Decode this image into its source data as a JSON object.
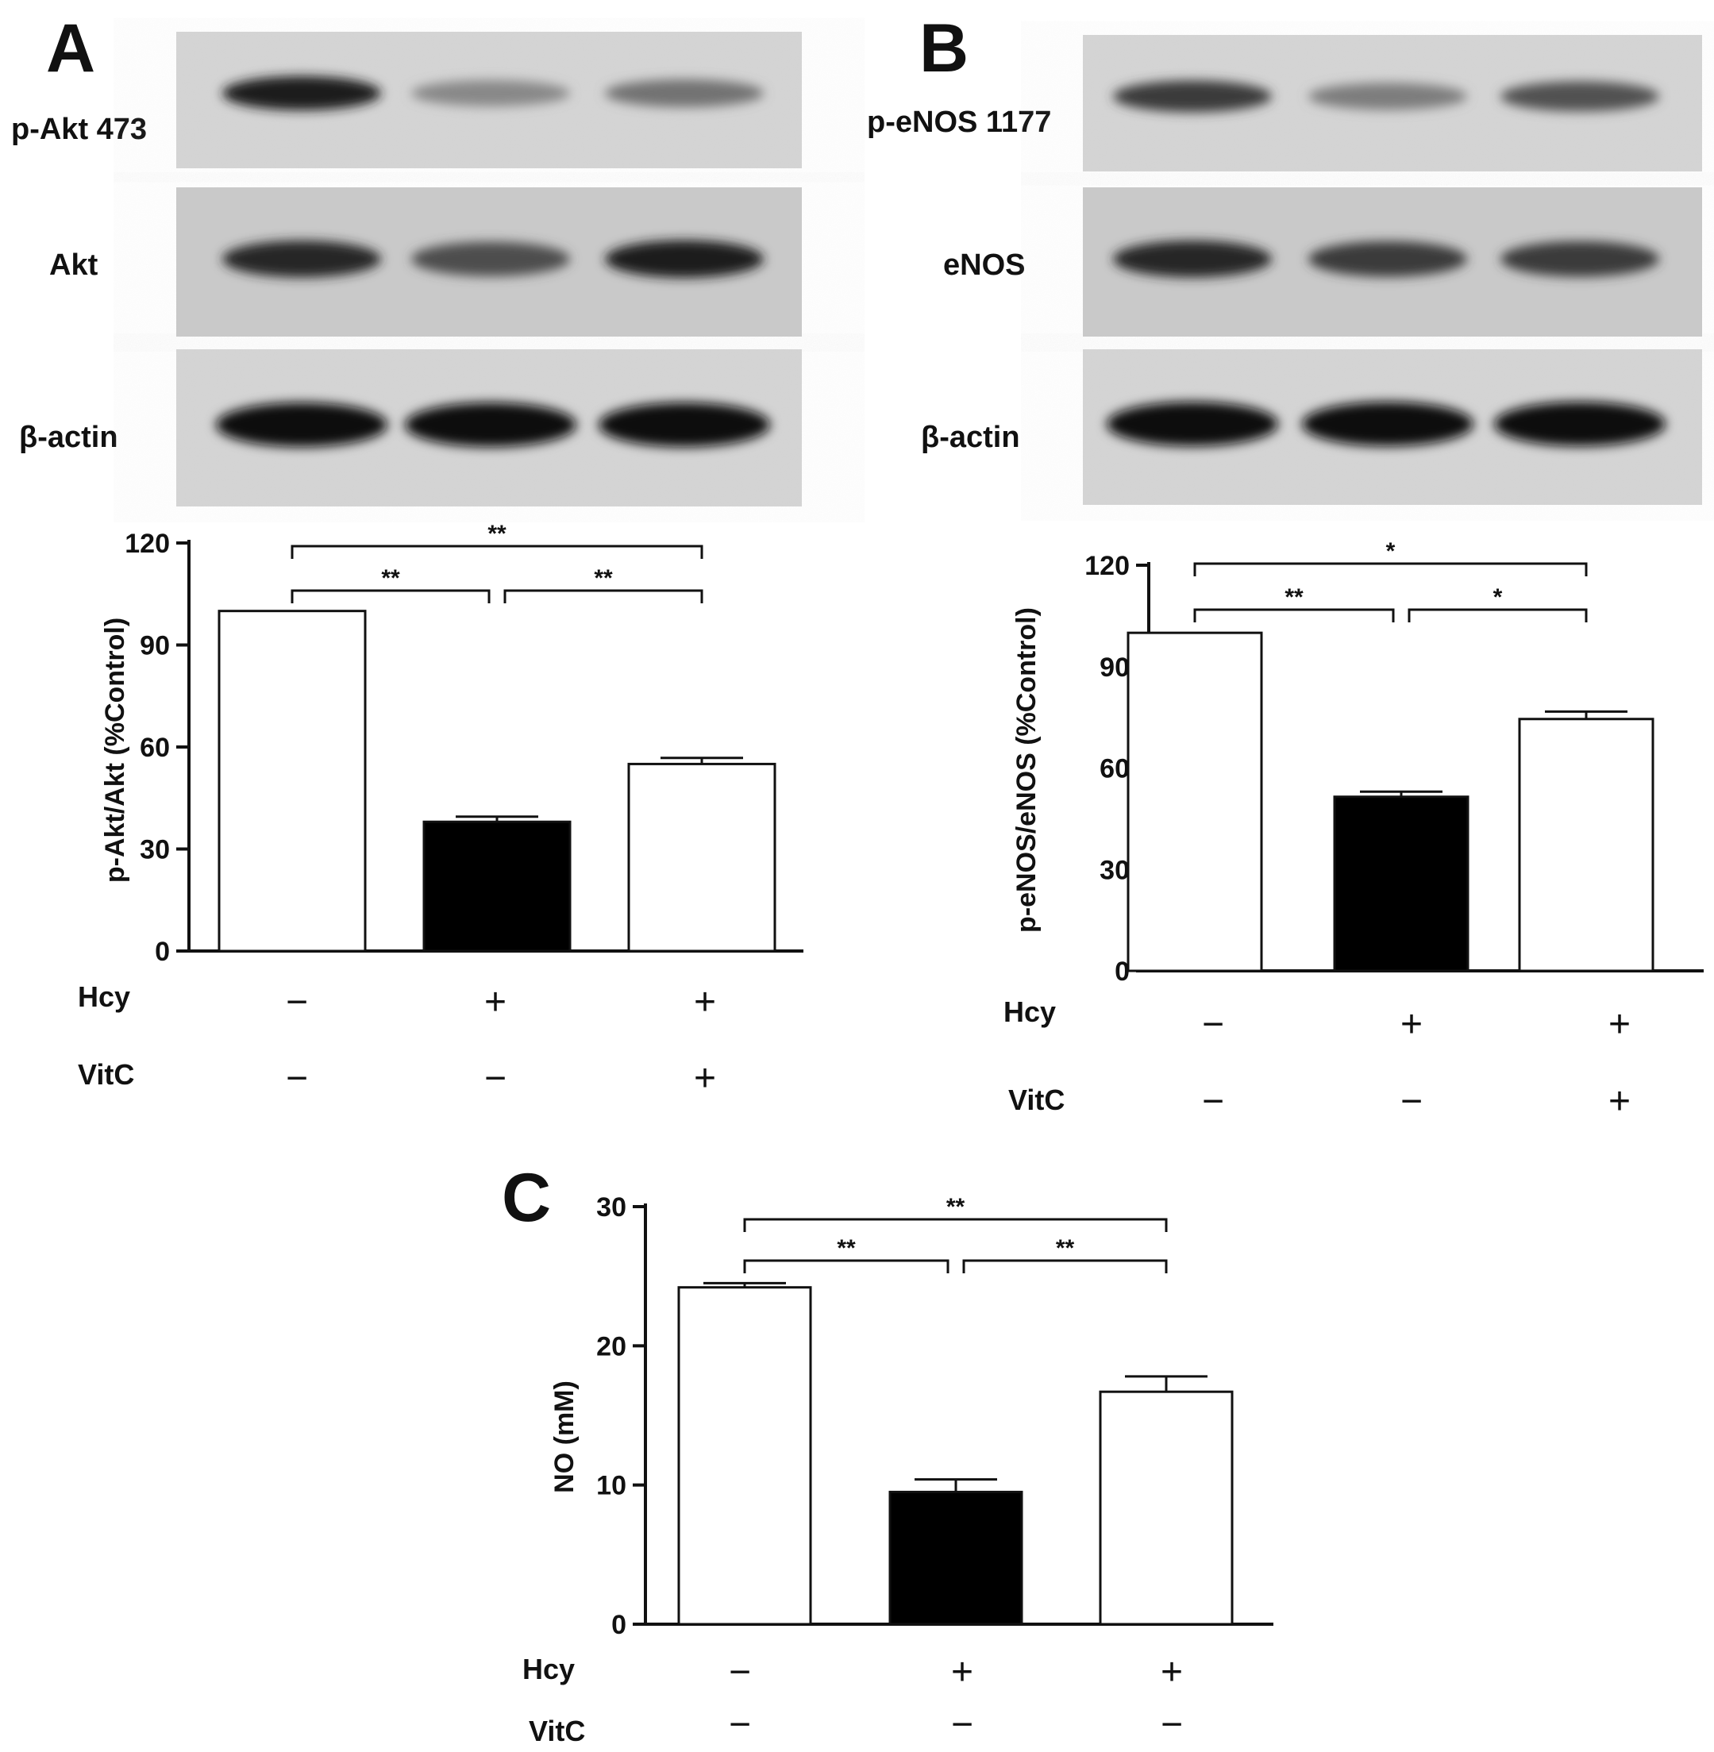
{
  "panels": [
    {
      "letter": "A",
      "blots": [
        {
          "label": "p-Akt 473",
          "intensity": [
            0.95,
            0.45,
            0.55
          ],
          "style": "thin"
        },
        {
          "label": "Akt",
          "intensity": [
            0.9,
            0.72,
            0.95
          ],
          "style": "mid"
        },
        {
          "label": "β-actin",
          "intensity": [
            1.0,
            1.0,
            1.0
          ],
          "style": "thick"
        }
      ],
      "row_labels": {
        "hcy": "Hcy",
        "vitc": "VitC"
      },
      "conditions": {
        "hcy": [
          "−",
          "+",
          "+"
        ],
        "vitc": [
          "−",
          "−",
          "+"
        ]
      }
    },
    {
      "letter": "B",
      "blots": [
        {
          "label": "p-eNOS 1177",
          "intensity": [
            0.8,
            0.5,
            0.7
          ],
          "style": "thin"
        },
        {
          "label": "eNOS",
          "intensity": [
            0.9,
            0.8,
            0.8
          ],
          "style": "mid"
        },
        {
          "label": "β-actin",
          "intensity": [
            1.0,
            1.0,
            1.0
          ],
          "style": "thick"
        }
      ],
      "row_labels": {
        "hcy": "Hcy",
        "vitc": "VitC"
      },
      "conditions": {
        "hcy": [
          "−",
          "+",
          "+"
        ],
        "vitc": [
          "−",
          "−",
          "+"
        ]
      }
    },
    {
      "letter": "C",
      "blots": [],
      "row_labels": {
        "hcy": "Hcy",
        "vitc": "VitC"
      },
      "conditions": {
        "hcy": [
          "−",
          "+",
          "+"
        ],
        "vitc": [
          "−",
          "−",
          "−"
        ]
      }
    }
  ],
  "chart_data": [
    {
      "type": "bar",
      "panel": "A",
      "ylabel": "p-Akt/Akt (%Control)",
      "ylim": [
        0,
        120
      ],
      "yticks": [
        0,
        30,
        60,
        90,
        120
      ],
      "values": [
        100,
        38,
        55
      ],
      "errors": [
        0,
        1.5,
        1.8
      ],
      "fills": [
        "#ffffff",
        "#000000",
        "#ffffff"
      ],
      "significance": [
        {
          "from": 0,
          "to": 1,
          "label": "**",
          "level": 1
        },
        {
          "from": 1,
          "to": 2,
          "label": "**",
          "level": 1
        },
        {
          "from": 0,
          "to": 2,
          "label": "**",
          "level": 2
        }
      ]
    },
    {
      "type": "bar",
      "panel": "B",
      "ylabel": "p-eNOS/eNOS (%Control)",
      "ylim": [
        0,
        120
      ],
      "yticks": [
        0,
        30,
        60,
        90,
        120
      ],
      "values": [
        100,
        51.5,
        74.5
      ],
      "errors": [
        0,
        1.5,
        2.2
      ],
      "fills": [
        "#ffffff",
        "#000000",
        "#ffffff"
      ],
      "significance": [
        {
          "from": 0,
          "to": 1,
          "label": "**",
          "level": 1
        },
        {
          "from": 1,
          "to": 2,
          "label": "*",
          "level": 1
        },
        {
          "from": 0,
          "to": 2,
          "label": "*",
          "level": 2
        }
      ]
    },
    {
      "type": "bar",
      "panel": "C",
      "ylabel": "NO (mM)",
      "ylim": [
        0,
        30
      ],
      "yticks": [
        0,
        10,
        20,
        30
      ],
      "values": [
        24.2,
        9.5,
        16.7
      ],
      "errors": [
        0.3,
        0.9,
        1.1
      ],
      "fills": [
        "#ffffff",
        "#000000",
        "#ffffff"
      ],
      "significance": [
        {
          "from": 0,
          "to": 1,
          "label": "**",
          "level": 1
        },
        {
          "from": 1,
          "to": 2,
          "label": "**",
          "level": 1
        },
        {
          "from": 0,
          "to": 2,
          "label": "**",
          "level": 2
        }
      ]
    }
  ]
}
